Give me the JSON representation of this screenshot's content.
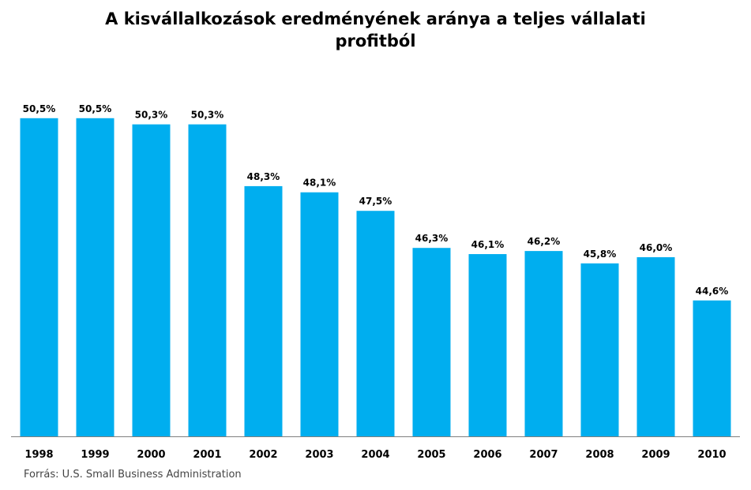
{
  "chart_data": {
    "type": "bar",
    "title_line1": "A kisvállalkozások eredményének aránya a teljes vállalati",
    "title_line2": "profitból",
    "categories": [
      "1998",
      "1999",
      "2000",
      "2001",
      "2002",
      "2003",
      "2004",
      "2005",
      "2006",
      "2007",
      "2008",
      "2009",
      "2010"
    ],
    "values": [
      50.5,
      50.5,
      50.3,
      50.3,
      48.3,
      48.1,
      47.5,
      46.3,
      46.1,
      46.2,
      45.8,
      46.0,
      44.6
    ],
    "value_labels": [
      "50,5%",
      "50,5%",
      "50,3%",
      "50,3%",
      "48,3%",
      "48,1%",
      "47,5%",
      "46,3%",
      "46,1%",
      "46,2%",
      "45,8%",
      "46,0%",
      "44,6%"
    ],
    "ylim": [
      40.2,
      50.75
    ],
    "grid": false,
    "bar_color": "#00AEEF",
    "source": "Forrás:  U.S. Small Business Administration"
  }
}
